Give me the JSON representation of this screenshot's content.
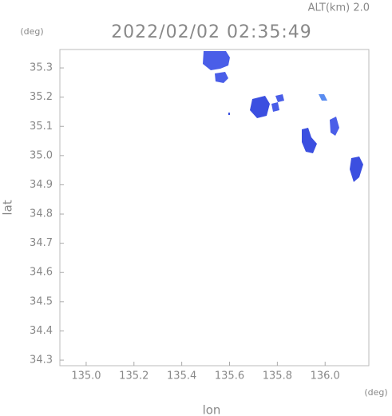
{
  "chart_data": {
    "type": "map",
    "altitude_label": "ALT(km) 2.0",
    "title": "2022/02/02 02:35:49",
    "y_unit": "(deg)",
    "x_unit": "(deg)",
    "ylabel": "lat",
    "xlabel": "lon",
    "xlim": [
      134.89,
      136.183
    ],
    "ylim": [
      34.281,
      35.363
    ],
    "xticks": [
      {
        "value": 135.0,
        "label": "135.0"
      },
      135.2,
      135.4,
      135.6,
      135.8,
      {
        "value": 136.0,
        "label": "136.0"
      }
    ],
    "yticks": [
      34.3,
      34.4,
      34.5,
      34.6,
      34.7,
      34.8,
      34.9,
      {
        "value": 35.0,
        "label": "35.0"
      },
      35.1,
      35.2,
      35.3
    ]
  }
}
